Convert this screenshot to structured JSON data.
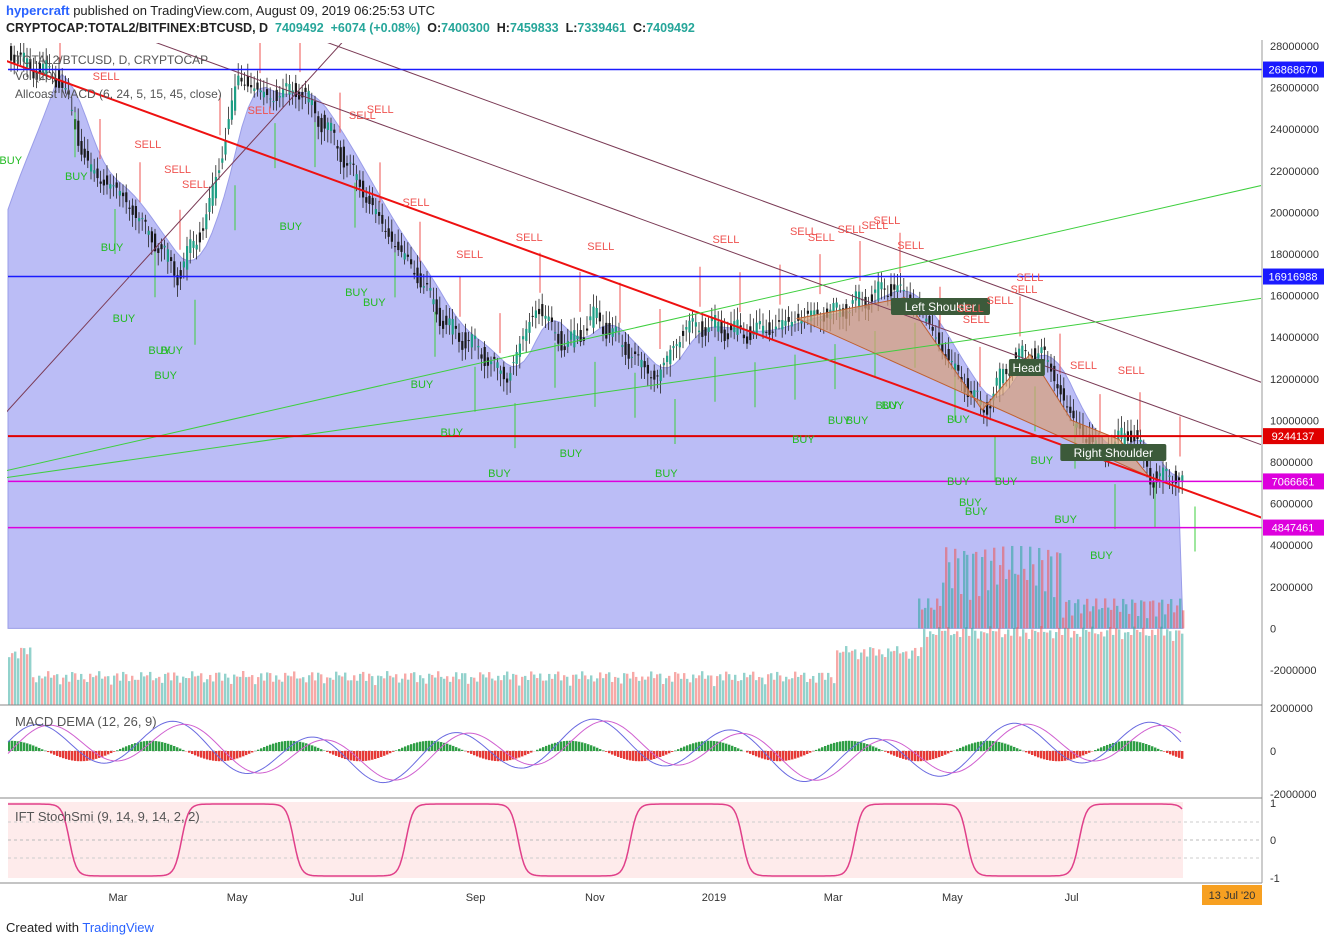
{
  "header": {
    "brand": "hypercraft",
    "published": "published on TradingView.com, August 09, 2019 06:25:53 UTC",
    "symbol": "CRYPTOCAP:TOTAL2/BITFINEX:BTCUSD, D",
    "last": "7409492",
    "change": "+6074 (+0.08%)",
    "o_label": "O:",
    "o": "7400300",
    "h_label": "H:",
    "h": "7459833",
    "l_label": "L:",
    "l": "7339461",
    "c_label": "C:",
    "c": "7409492"
  },
  "footer": {
    "created": "Created with",
    "brand": "TradingView"
  },
  "overlay_text": {
    "line1": "TOTAL2/BTCUSD, D, CRYPTOCAP",
    "line2": "Vol (20)",
    "line3": "Allcoast MACD (6, 24, 5, 15, 45, close)"
  },
  "panes": {
    "macd_title": "MACD DEMA (12, 26, 9)",
    "stoch_title": "IFT StochSmi (9, 14, 9, 14, 2, 2)"
  },
  "chart_data": {
    "type": "line",
    "title": "CRYPTOCAP:TOTAL2/BITFINEX:BTCUSD, D",
    "x_ticks": [
      "Mar",
      "May",
      "Jul",
      "Sep",
      "Nov",
      "2019",
      "Mar",
      "May",
      "Jul"
    ],
    "x_tick_months": [
      2,
      4,
      6,
      8,
      10,
      12,
      14,
      16,
      18
    ],
    "date_badge": "13 Jul '20",
    "y_ticks": [
      28000000,
      26000000,
      24000000,
      22000000,
      20000000,
      18000000,
      16000000,
      14000000,
      12000000,
      10000000,
      8000000,
      6000000,
      4000000,
      2000000,
      0,
      -2000000
    ],
    "ylim": [
      -3500000,
      28500000
    ],
    "price_series": {
      "months": [
        0,
        0.5,
        1,
        1.5,
        2,
        2.5,
        3,
        3.5,
        4,
        4.5,
        5,
        5.5,
        6,
        6.5,
        7,
        7.5,
        8,
        8.5,
        9,
        9.5,
        10,
        10.5,
        11,
        11.5,
        12,
        12.5,
        13,
        13.5,
        14,
        14.5,
        15,
        15.5,
        16,
        16.5,
        17,
        17.5,
        18,
        18.5,
        19,
        19.3
      ],
      "values": [
        28000000,
        27000000,
        26500000,
        22000000,
        21000000,
        19000000,
        17000000,
        20000000,
        26500000,
        25500000,
        26000000,
        24000000,
        21500000,
        19000000,
        17000000,
        14500000,
        13500000,
        12000000,
        15500000,
        13500000,
        15000000,
        13500000,
        12000000,
        14500000,
        14500000,
        14200000,
        14500000,
        15000000,
        15200000,
        15800000,
        16500000,
        15000000,
        12500000,
        10500000,
        13000000,
        13300000,
        10000000,
        8300000,
        9600000,
        7300000
      ]
    },
    "price_labels": [
      {
        "value": "26868670",
        "price": 26868670,
        "color": "#1a1aff"
      },
      {
        "value": "16916988",
        "price": 16916988,
        "color": "#1a1aff"
      },
      {
        "value": "9244137",
        "price": 9244137,
        "color": "#e00000"
      },
      {
        "value": "7066661",
        "price": 7066661,
        "color": "#dd00dd"
      },
      {
        "value": "4847461",
        "price": 4847461,
        "color": "#dd00dd"
      }
    ],
    "pattern_labels": [
      "Left Shoulder",
      "Head",
      "Right Shoulder"
    ],
    "sell_signal": "SELL",
    "buy_signal": "BUY",
    "macd_ticks": [
      "2000000",
      "0",
      "-2000000"
    ],
    "stoch_ticks": [
      "1",
      "0",
      "-1"
    ]
  },
  "colors": {
    "up": "#26a69a",
    "down": "#ef5350",
    "area": "#b7b9f5",
    "trend_red": "#ee1111",
    "trend_brown": "#7a3a55",
    "trend_green": "#3ecf3e",
    "level_blue": "#1a1aff",
    "level_magenta": "#dd00dd",
    "pattern_fill": "#d9a077",
    "date_badge": "#f7a021"
  }
}
